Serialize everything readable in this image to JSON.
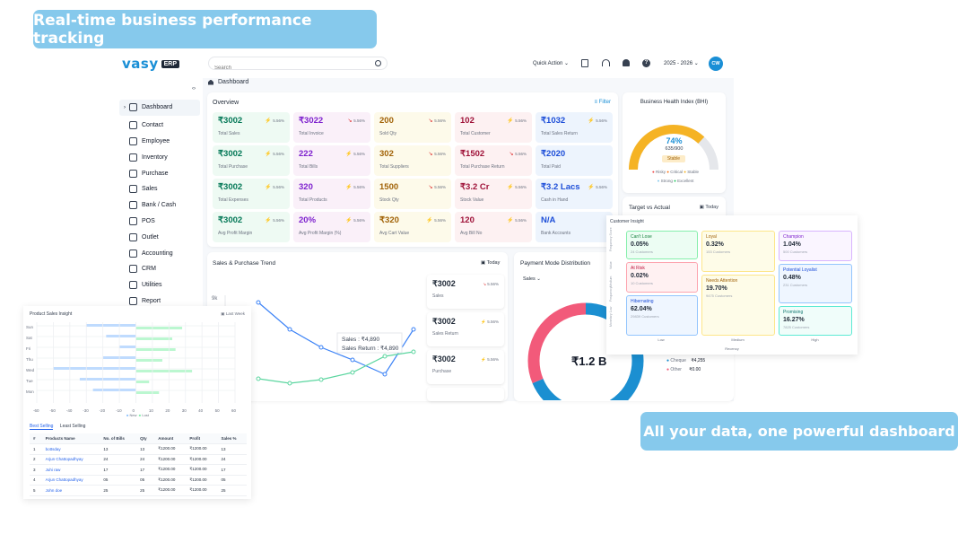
{
  "banners": {
    "top": "Real-time business performance tracking",
    "bottom": "All your data, one powerful dashboard"
  },
  "header": {
    "logo": "vasy",
    "logo_badge": "ERP",
    "search_placeholder": "Search",
    "quick_action": "Quick Action",
    "year": "2025 - 2026",
    "avatar": "CW",
    "breadcrumb": "Dashboard"
  },
  "sidebar": {
    "items": [
      "Dashboard",
      "Contact",
      "Employee",
      "Inventory",
      "Purchase",
      "Sales",
      "Bank / Cash",
      "POS",
      "Outlet",
      "Accounting",
      "CRM",
      "Utilities",
      "Report"
    ]
  },
  "overview": {
    "title": "Overview",
    "filter": "Filter",
    "kpis": [
      {
        "value": "₹3002",
        "label": "Total Sales",
        "pct": "5.56%",
        "up": true,
        "bg": "#eefaf3",
        "color": "#047857"
      },
      {
        "value": "₹3022",
        "label": "Total Invoice",
        "pct": "5.56%",
        "up": false,
        "bg": "#faf0f9",
        "color": "#7e22ce"
      },
      {
        "value": "200",
        "label": "Sold Qty",
        "pct": "5.56%",
        "up": false,
        "bg": "#fdfaea",
        "color": "#a16207"
      },
      {
        "value": "102",
        "label": "Total Customer",
        "pct": "5.56%",
        "up": true,
        "bg": "#fdf1f2",
        "color": "#9f1239"
      },
      {
        "value": "₹1032",
        "label": "Total Sales Return",
        "pct": "5.56%",
        "up": true,
        "bg": "#edf4fd",
        "color": "#1d4ed8"
      },
      {
        "value": "₹3002",
        "label": "Total Purchase",
        "pct": "5.56%",
        "up": true,
        "bg": "#eefaf3",
        "color": "#047857"
      },
      {
        "value": "222",
        "label": "Total Bills",
        "pct": "5.56%",
        "up": true,
        "bg": "#faf0f9",
        "color": "#7e22ce"
      },
      {
        "value": "302",
        "label": "Total Suppliers",
        "pct": "5.56%",
        "up": false,
        "bg": "#fdfaea",
        "color": "#a16207"
      },
      {
        "value": "₹1502",
        "label": "Total Purchase Return",
        "pct": "5.56%",
        "up": false,
        "bg": "#fdf1f2",
        "color": "#9f1239"
      },
      {
        "value": "₹2020",
        "label": "Total Paid",
        "pct": "",
        "up": true,
        "bg": "#edf4fd",
        "color": "#1d4ed8"
      },
      {
        "value": "₹3002",
        "label": "Total Expenses",
        "pct": "5.56%",
        "up": true,
        "bg": "#eefaf3",
        "color": "#047857"
      },
      {
        "value": "320",
        "label": "Total Products",
        "pct": "5.56%",
        "up": true,
        "bg": "#faf0f9",
        "color": "#7e22ce"
      },
      {
        "value": "1500",
        "label": "Stock Qty",
        "pct": "5.56%",
        "up": false,
        "bg": "#fdfaea",
        "color": "#a16207"
      },
      {
        "value": "₹3.2 Cr",
        "label": "Stock Value",
        "pct": "5.56%",
        "up": true,
        "bg": "#fdf1f2",
        "color": "#9f1239"
      },
      {
        "value": "₹3.2 Lacs",
        "label": "Cash in Hand",
        "pct": "5.56%",
        "up": true,
        "bg": "#edf4fd",
        "color": "#1d4ed8"
      },
      {
        "value": "₹3002",
        "label": "Avg Profit Margin",
        "pct": "5.56%",
        "up": true,
        "bg": "#eefaf3",
        "color": "#047857"
      },
      {
        "value": "20%",
        "label": "Avg Profit Margin (%)",
        "pct": "5.56%",
        "up": true,
        "bg": "#faf0f9",
        "color": "#7e22ce"
      },
      {
        "value": "₹320",
        "label": "Avg Cart Value",
        "pct": "5.56%",
        "up": true,
        "bg": "#fdfaea",
        "color": "#a16207"
      },
      {
        "value": "120",
        "label": "Avg Bill No",
        "pct": "5.56%",
        "up": true,
        "bg": "#fdf1f2",
        "color": "#9f1239"
      },
      {
        "value": "N/A",
        "label": "Bank Accounts",
        "pct": "",
        "up": true,
        "bg": "#edf4fd",
        "color": "#1d4ed8"
      }
    ]
  },
  "bhi": {
    "title": "Business Health Index (BHI)",
    "percent": "74%",
    "score": "635/900",
    "status": "Stable",
    "fraction": 0.74,
    "legend": [
      "Risky",
      "Critical",
      "Stable",
      "Strong",
      "Excellent"
    ]
  },
  "target": {
    "title": "Target vs Actual",
    "today": "Today"
  },
  "trend": {
    "title": "Sales & Purchase Trend",
    "today": "Today",
    "ymax_label": "9k",
    "tooltip_sales": "Sales : ₹4,890",
    "tooltip_return": "Sales Return : ₹4,890",
    "stats": [
      {
        "value": "₹3002",
        "label": "Sales",
        "pct": "5.56%",
        "up": false
      },
      {
        "value": "₹3002",
        "label": "Sales Return",
        "pct": "5.56%",
        "up": true
      },
      {
        "value": "₹3002",
        "label": "Purchase",
        "pct": "5.56%",
        "up": true
      }
    ]
  },
  "payment": {
    "title": "Payment Mode Distribution",
    "select": "Sales",
    "total": "₹1.2 B",
    "legend": [
      {
        "label": "Cheque",
        "value": "₹4,255"
      },
      {
        "label": "Other",
        "value": "₹0.00"
      }
    ]
  },
  "customer": {
    "title": "Customer Insight",
    "cells": [
      {
        "t": "Can't Lose",
        "p": "0.05%",
        "s": "24 Customers"
      },
      {
        "t": "Loyal",
        "p": "0.32%",
        "s": "153 Customers"
      },
      {
        "t": "Champion",
        "p": "1.04%",
        "s": "500 Customers"
      },
      {
        "t": "At Risk",
        "p": "0.02%",
        "s": "10 Customers"
      },
      {
        "t": "Needs Attention",
        "p": "19.70%",
        "s": "9475 Customers"
      },
      {
        "t": "Potential Loyalist",
        "p": "0.48%",
        "s": "231 Customers"
      },
      {
        "t": "Hibernating",
        "p": "62.04%",
        "s": "29839 Customers"
      },
      {
        "t": "Promising",
        "p": "16.27%",
        "s": "7825 Customers"
      }
    ],
    "ylabels": [
      "Frequency Score",
      "Value",
      "Medium",
      "Frequency",
      "Low",
      "Monetary"
    ],
    "xlabels": [
      "Low",
      "Medium",
      "High"
    ],
    "xaxis": "Recency"
  },
  "product": {
    "title": "Product Sales Insight",
    "range": "Last Week",
    "rows": [
      "Sun",
      "Sat",
      "Fri",
      "Thu",
      "Wed",
      "Tue",
      "Mon"
    ],
    "ticks": [
      "-60",
      "-50",
      "-40",
      "-30",
      "-20",
      "-10",
      "0",
      "10",
      "20",
      "30",
      "40",
      "50",
      "60"
    ],
    "legend": [
      "New",
      "Lost"
    ],
    "tabs": [
      "Best Selling",
      "Least Selling"
    ],
    "headers": [
      "#",
      "Products Name",
      "No. of Bills",
      "Qty",
      "Amount",
      "Profit",
      "Sales %"
    ],
    "table": [
      [
        "1",
        "bottsday",
        "13",
        "13",
        "₹1200.00",
        "₹1200.00",
        "13"
      ],
      [
        "2",
        "Arjun Chattopadhyay",
        "24",
        "24",
        "₹1200.00",
        "₹1200.00",
        "24"
      ],
      [
        "3",
        "Juhi raw",
        "17",
        "17",
        "₹1200.00",
        "₹1200.00",
        "17"
      ],
      [
        "4",
        "Arjun Chattopadhyay",
        "05",
        "05",
        "₹1200.00",
        "₹1200.00",
        "05"
      ],
      [
        "5",
        "John doe",
        "25",
        "25",
        "₹1200.00",
        "₹1200.00",
        "25"
      ]
    ]
  },
  "colors": {
    "brand": "#1a8fd6",
    "banner": "#86c9ec",
    "sales_line": "#3b82f6",
    "purchase_line": "#5cd6a0"
  }
}
